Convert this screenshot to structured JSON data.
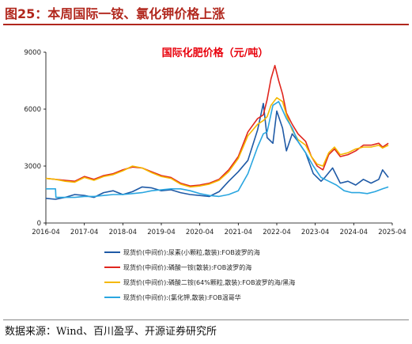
{
  "figure": {
    "title": "图25：本周国际一铵、氯化钾价格上涨",
    "source": "数据来源：Wind、百川盈孚、开源证券研究所"
  },
  "chart_data": {
    "type": "line",
    "title": "国际化肥价格（元/吨）",
    "xlabel": "",
    "ylabel": "",
    "x_tick_labels": [
      "2016-04",
      "2017-04",
      "2018-04",
      "2019-04",
      "2020-04",
      "2021-04",
      "2022-04",
      "2023-04",
      "2024-04",
      "2025-04"
    ],
    "y_ticks": [
      0,
      3000,
      6000,
      9000
    ],
    "xlim": [
      2016.25,
      2025.25
    ],
    "ylim": [
      0,
      9000
    ],
    "grid": false,
    "legend_position": "bottom",
    "series": [
      {
        "name": "现货价(中间价):尿素(小颗粒,散装):FOB波罗的海",
        "color": "#1f5aa6",
        "points": [
          [
            2016.25,
            1300
          ],
          [
            2016.5,
            1250
          ],
          [
            2016.75,
            1350
          ],
          [
            2017.0,
            1500
          ],
          [
            2017.25,
            1450
          ],
          [
            2017.5,
            1350
          ],
          [
            2017.75,
            1600
          ],
          [
            2018.0,
            1700
          ],
          [
            2018.25,
            1500
          ],
          [
            2018.5,
            1650
          ],
          [
            2018.75,
            1900
          ],
          [
            2019.0,
            1850
          ],
          [
            2019.25,
            1700
          ],
          [
            2019.5,
            1750
          ],
          [
            2019.75,
            1600
          ],
          [
            2020.0,
            1500
          ],
          [
            2020.25,
            1450
          ],
          [
            2020.5,
            1400
          ],
          [
            2020.75,
            1650
          ],
          [
            2021.0,
            2200
          ],
          [
            2021.25,
            2700
          ],
          [
            2021.5,
            3300
          ],
          [
            2021.75,
            4900
          ],
          [
            2021.9,
            6300
          ],
          [
            2022.0,
            4500
          ],
          [
            2022.15,
            4200
          ],
          [
            2022.25,
            5900
          ],
          [
            2022.4,
            5000
          ],
          [
            2022.5,
            3800
          ],
          [
            2022.65,
            4700
          ],
          [
            2022.8,
            4300
          ],
          [
            2023.0,
            3700
          ],
          [
            2023.2,
            2600
          ],
          [
            2023.4,
            2200
          ],
          [
            2023.5,
            2400
          ],
          [
            2023.7,
            2900
          ],
          [
            2023.9,
            2100
          ],
          [
            2024.1,
            2200
          ],
          [
            2024.3,
            2000
          ],
          [
            2024.5,
            2300
          ],
          [
            2024.7,
            2100
          ],
          [
            2024.9,
            2300
          ],
          [
            2025.0,
            2800
          ],
          [
            2025.15,
            2400
          ]
        ]
      },
      {
        "name": "现货价(中间价):磷酸一铵(散装):FOB波罗的海",
        "color": "#e0261e",
        "points": [
          [
            2016.25,
            2350
          ],
          [
            2016.5,
            2300
          ],
          [
            2016.75,
            2250
          ],
          [
            2017.0,
            2200
          ],
          [
            2017.25,
            2450
          ],
          [
            2017.5,
            2300
          ],
          [
            2017.75,
            2500
          ],
          [
            2018.0,
            2600
          ],
          [
            2018.25,
            2800
          ],
          [
            2018.5,
            2950
          ],
          [
            2018.75,
            2900
          ],
          [
            2019.0,
            2700
          ],
          [
            2019.25,
            2500
          ],
          [
            2019.5,
            2400
          ],
          [
            2019.75,
            2100
          ],
          [
            2020.0,
            1950
          ],
          [
            2020.25,
            2000
          ],
          [
            2020.5,
            2100
          ],
          [
            2020.75,
            2300
          ],
          [
            2021.0,
            2800
          ],
          [
            2021.25,
            3500
          ],
          [
            2021.5,
            4800
          ],
          [
            2021.75,
            5500
          ],
          [
            2021.9,
            5700
          ],
          [
            2022.0,
            6500
          ],
          [
            2022.1,
            7600
          ],
          [
            2022.2,
            8300
          ],
          [
            2022.3,
            7500
          ],
          [
            2022.4,
            6800
          ],
          [
            2022.5,
            5800
          ],
          [
            2022.65,
            5200
          ],
          [
            2022.8,
            4700
          ],
          [
            2023.0,
            4300
          ],
          [
            2023.15,
            3500
          ],
          [
            2023.3,
            3000
          ],
          [
            2023.45,
            2800
          ],
          [
            2023.6,
            3600
          ],
          [
            2023.75,
            3900
          ],
          [
            2023.9,
            3500
          ],
          [
            2024.1,
            3600
          ],
          [
            2024.3,
            3800
          ],
          [
            2024.5,
            4100
          ],
          [
            2024.7,
            4100
          ],
          [
            2024.9,
            4200
          ],
          [
            2025.0,
            4000
          ],
          [
            2025.15,
            4200
          ]
        ]
      },
      {
        "name": "现货价(中间价):磷酸二铵(64%颗粒,散装):FOB波罗的海/黑海",
        "color": "#f5b800",
        "points": [
          [
            2016.25,
            2350
          ],
          [
            2016.5,
            2300
          ],
          [
            2016.75,
            2200
          ],
          [
            2017.0,
            2150
          ],
          [
            2017.25,
            2400
          ],
          [
            2017.5,
            2250
          ],
          [
            2017.75,
            2450
          ],
          [
            2018.0,
            2550
          ],
          [
            2018.25,
            2750
          ],
          [
            2018.5,
            3000
          ],
          [
            2018.75,
            2900
          ],
          [
            2019.0,
            2650
          ],
          [
            2019.25,
            2450
          ],
          [
            2019.5,
            2350
          ],
          [
            2019.75,
            2050
          ],
          [
            2020.0,
            1900
          ],
          [
            2020.25,
            1950
          ],
          [
            2020.5,
            2050
          ],
          [
            2020.75,
            2250
          ],
          [
            2021.0,
            2700
          ],
          [
            2021.25,
            3400
          ],
          [
            2021.5,
            4600
          ],
          [
            2021.75,
            5200
          ],
          [
            2021.9,
            5400
          ],
          [
            2022.0,
            5600
          ],
          [
            2022.1,
            6200
          ],
          [
            2022.25,
            6600
          ],
          [
            2022.4,
            6400
          ],
          [
            2022.5,
            5700
          ],
          [
            2022.65,
            4900
          ],
          [
            2022.8,
            4400
          ],
          [
            2023.0,
            4100
          ],
          [
            2023.15,
            3500
          ],
          [
            2023.3,
            3100
          ],
          [
            2023.45,
            3000
          ],
          [
            2023.6,
            3700
          ],
          [
            2023.75,
            4000
          ],
          [
            2023.9,
            3600
          ],
          [
            2024.1,
            3700
          ],
          [
            2024.3,
            3900
          ],
          [
            2024.5,
            4000
          ],
          [
            2024.7,
            4000
          ],
          [
            2024.9,
            4100
          ],
          [
            2025.0,
            3950
          ],
          [
            2025.15,
            4100
          ]
        ]
      },
      {
        "name": "现货价(中间价):(氯化钾,散装):FOB温哥华",
        "color": "#2aa6e0",
        "points": [
          [
            2016.25,
            1800
          ],
          [
            2016.5,
            1800
          ],
          [
            2016.51,
            1350
          ],
          [
            2016.75,
            1350
          ],
          [
            2017.0,
            1350
          ],
          [
            2017.25,
            1400
          ],
          [
            2017.5,
            1400
          ],
          [
            2017.75,
            1450
          ],
          [
            2018.0,
            1500
          ],
          [
            2018.25,
            1500
          ],
          [
            2018.5,
            1550
          ],
          [
            2018.75,
            1600
          ],
          [
            2019.0,
            1700
          ],
          [
            2019.25,
            1750
          ],
          [
            2019.5,
            1800
          ],
          [
            2019.75,
            1800
          ],
          [
            2020.0,
            1700
          ],
          [
            2020.25,
            1550
          ],
          [
            2020.5,
            1450
          ],
          [
            2020.75,
            1400
          ],
          [
            2021.0,
            1500
          ],
          [
            2021.25,
            1700
          ],
          [
            2021.5,
            2600
          ],
          [
            2021.75,
            4000
          ],
          [
            2021.9,
            4700
          ],
          [
            2022.0,
            4800
          ],
          [
            2022.15,
            6200
          ],
          [
            2022.3,
            6400
          ],
          [
            2022.5,
            5500
          ],
          [
            2022.65,
            5000
          ],
          [
            2022.8,
            4300
          ],
          [
            2023.0,
            3700
          ],
          [
            2023.2,
            3000
          ],
          [
            2023.4,
            2400
          ],
          [
            2023.6,
            2200
          ],
          [
            2023.8,
            2000
          ],
          [
            2024.0,
            1700
          ],
          [
            2024.2,
            1600
          ],
          [
            2024.4,
            1600
          ],
          [
            2024.6,
            1550
          ],
          [
            2024.8,
            1650
          ],
          [
            2025.0,
            1800
          ],
          [
            2025.15,
            1900
          ]
        ]
      }
    ]
  }
}
